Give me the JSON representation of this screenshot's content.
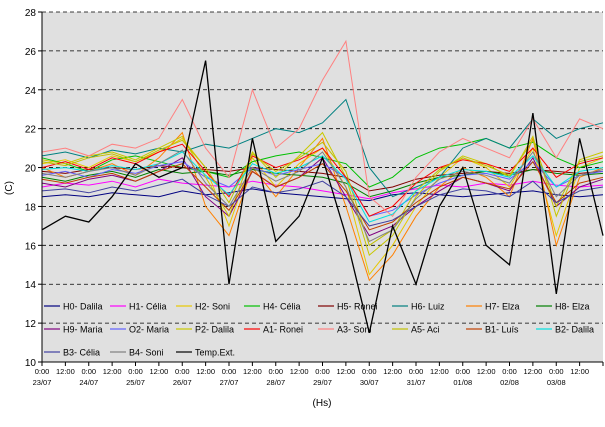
{
  "chart_data": {
    "type": "line",
    "ylabel": "(C)",
    "xlabel": "(Hs)",
    "ylim": [
      10,
      28
    ],
    "yticks": [
      10,
      12,
      14,
      16,
      18,
      20,
      22,
      24,
      26,
      28
    ],
    "grid": "horizontal dashed",
    "legend_position": "bottom-inside",
    "x_day_labels": [
      "23/07",
      "24/07",
      "25/07",
      "26/07",
      "27/07",
      "28/07",
      "29/07",
      "30/07",
      "31/07",
      "01/08",
      "02/08",
      "03/08"
    ],
    "x_time_labels": [
      "0:00",
      "12:00",
      "0:00",
      "12:00",
      "0:00",
      "12:00",
      "0:00",
      "12:00",
      "0:00",
      "12:00",
      "0:00",
      "12:00",
      "0:00",
      "12:00",
      "0:00",
      "12:00",
      "0:00",
      "12:00",
      "0:00",
      "12:00",
      "0:00",
      "12:00",
      "0:00",
      "12:00"
    ],
    "series": [
      {
        "name": "H0- Dalila",
        "color": "#000080",
        "values": [
          18.5,
          18.6,
          18.5,
          18.7,
          18.6,
          18.5,
          18.8,
          18.6,
          18.7,
          18.9,
          18.7,
          18.6,
          18.5,
          18.4,
          18.3,
          18.6,
          18.7,
          18.6,
          18.5,
          18.6,
          18.7,
          18.8,
          18.6,
          18.5,
          18.6
        ]
      },
      {
        "name": "H1- Célia",
        "color": "#ff00ff",
        "values": [
          19.0,
          19.2,
          19.1,
          19.3,
          19.0,
          19.4,
          19.2,
          19.1,
          19.0,
          19.3,
          19.1,
          19.0,
          18.8,
          18.6,
          18.4,
          18.7,
          18.9,
          19.1,
          19.0,
          19.2,
          19.1,
          19.3,
          19.1,
          19.0,
          19.1
        ]
      },
      {
        "name": "H2- Soni",
        "color": "#e8c800",
        "values": [
          20.2,
          20.4,
          20.0,
          20.6,
          20.3,
          20.8,
          21.5,
          20.0,
          17.0,
          20.5,
          19.0,
          20.2,
          21.0,
          19.0,
          14.5,
          16.0,
          18.0,
          19.5,
          20.5,
          20.0,
          19.0,
          21.0,
          16.5,
          20.0,
          20.5
        ]
      },
      {
        "name": "H4- Célia",
        "color": "#00c000",
        "values": [
          20.5,
          20.2,
          19.8,
          20.4,
          20.6,
          20.3,
          20.0,
          19.8,
          19.5,
          20.3,
          20.6,
          20.8,
          20.5,
          20.2,
          19.0,
          19.5,
          20.5,
          21.0,
          21.2,
          21.5,
          21.0,
          21.3,
          20.5,
          20.0,
          20.3
        ]
      },
      {
        "name": "H5- Ronei",
        "color": "#800000",
        "values": [
          19.8,
          19.7,
          19.9,
          20.0,
          19.9,
          20.1,
          20.0,
          19.9,
          19.8,
          20.0,
          19.9,
          19.8,
          19.7,
          19.5,
          18.8,
          19.0,
          19.4,
          19.6,
          19.7,
          19.8,
          19.7,
          19.9,
          19.8,
          19.7,
          19.8
        ]
      },
      {
        "name": "H6- Luiz",
        "color": "#008080",
        "values": [
          20.6,
          20.8,
          20.5,
          20.9,
          20.7,
          21.0,
          20.8,
          21.2,
          21.0,
          21.5,
          22.0,
          21.8,
          22.3,
          23.5,
          20.0,
          18.5,
          19.0,
          19.5,
          21.0,
          21.5,
          21.0,
          22.5,
          21.5,
          22.0,
          22.3
        ]
      },
      {
        "name": "H7- Elza",
        "color": "#ff8000",
        "values": [
          20.0,
          19.5,
          19.8,
          20.2,
          19.6,
          20.5,
          21.8,
          18.0,
          16.5,
          20.0,
          18.5,
          20.0,
          21.5,
          18.0,
          14.2,
          15.5,
          17.5,
          19.0,
          20.0,
          19.5,
          18.5,
          21.5,
          16.0,
          19.5,
          20.0
        ]
      },
      {
        "name": "H8- Elza",
        "color": "#008000",
        "values": [
          19.5,
          19.3,
          19.6,
          19.8,
          19.5,
          19.9,
          19.7,
          19.8,
          19.6,
          19.9,
          19.7,
          19.6,
          19.5,
          19.2,
          18.5,
          18.8,
          19.2,
          19.5,
          19.6,
          19.8,
          19.6,
          19.9,
          19.7,
          19.6,
          19.7
        ]
      },
      {
        "name": "H9- Maria",
        "color": "#800080",
        "values": [
          19.2,
          19.0,
          19.4,
          19.6,
          19.3,
          19.8,
          20.5,
          18.5,
          17.5,
          19.8,
          19.0,
          19.5,
          20.5,
          18.5,
          16.5,
          17.0,
          18.0,
          18.8,
          19.5,
          19.2,
          18.8,
          20.5,
          18.0,
          19.0,
          19.4
        ]
      },
      {
        "name": "O2- Maria",
        "color": "#6060ff",
        "values": [
          19.6,
          19.8,
          19.5,
          19.9,
          19.7,
          20.1,
          20.3,
          19.5,
          19.0,
          20.0,
          19.6,
          19.9,
          20.2,
          19.5,
          17.5,
          17.8,
          18.6,
          19.2,
          19.6,
          19.7,
          19.4,
          20.3,
          19.0,
          19.6,
          19.8
        ]
      },
      {
        "name": "P2- Dalila",
        "color": "#c8c800",
        "values": [
          20.4,
          20.2,
          20.6,
          20.8,
          20.4,
          21.0,
          21.6,
          19.5,
          17.5,
          20.8,
          19.5,
          20.6,
          21.8,
          19.5,
          15.5,
          16.5,
          18.5,
          19.8,
          20.6,
          20.2,
          19.5,
          21.6,
          17.5,
          20.4,
          20.8
        ]
      },
      {
        "name": "A1- Ronei",
        "color": "#ff0000",
        "values": [
          20.0,
          20.3,
          19.9,
          20.5,
          20.2,
          20.8,
          21.2,
          19.8,
          18.5,
          20.6,
          20.0,
          20.4,
          21.0,
          19.5,
          17.5,
          18.0,
          19.2,
          20.0,
          20.4,
          20.2,
          19.8,
          21.0,
          19.5,
          20.2,
          20.5
        ]
      },
      {
        "name": "A3- Soni",
        "color": "#ff8080",
        "values": [
          20.8,
          21.0,
          20.6,
          21.2,
          21.0,
          21.5,
          23.5,
          21.0,
          19.5,
          24.0,
          21.0,
          22.0,
          24.5,
          26.5,
          18.5,
          17.5,
          19.5,
          20.8,
          21.5,
          21.0,
          20.5,
          22.5,
          20.5,
          22.5,
          22.0
        ]
      },
      {
        "name": "A5- Aci",
        "color": "#c0c000",
        "values": [
          20.3,
          20.1,
          20.5,
          20.7,
          20.3,
          20.9,
          21.4,
          20.0,
          18.2,
          20.7,
          19.8,
          20.5,
          21.3,
          19.8,
          16.0,
          16.8,
          18.8,
          19.9,
          20.5,
          20.1,
          19.6,
          21.4,
          18.0,
          20.3,
          20.6
        ]
      },
      {
        "name": "B1- Luís",
        "color": "#c04000",
        "values": [
          19.4,
          19.2,
          19.5,
          19.7,
          19.3,
          19.8,
          20.2,
          19.0,
          17.8,
          19.8,
          19.0,
          19.5,
          20.2,
          18.8,
          16.8,
          17.2,
          18.2,
          19.0,
          19.5,
          19.2,
          18.9,
          20.3,
          18.2,
          19.2,
          19.5
        ]
      },
      {
        "name": "B2- Dalila",
        "color": "#00e0e0",
        "values": [
          19.9,
          20.0,
          19.8,
          20.1,
          19.9,
          20.2,
          20.8,
          19.6,
          18.6,
          20.2,
          19.7,
          20.0,
          20.6,
          19.4,
          17.2,
          17.6,
          18.8,
          19.5,
          19.9,
          19.8,
          19.5,
          20.6,
          19.0,
          19.8,
          20.0
        ]
      },
      {
        "name": "B3- Célia",
        "color": "#4040a0",
        "values": [
          18.8,
          18.9,
          18.7,
          19.0,
          18.8,
          19.1,
          19.4,
          18.6,
          18.0,
          19.0,
          18.7,
          18.9,
          19.3,
          18.5,
          17.0,
          17.3,
          18.0,
          18.6,
          18.9,
          18.8,
          18.5,
          19.3,
          18.2,
          18.8,
          19.0
        ]
      },
      {
        "name": "B4- Soni",
        "color": "#808080",
        "values": [
          19.7,
          19.5,
          19.8,
          20.0,
          19.6,
          20.2,
          20.9,
          19.2,
          18.0,
          20.0,
          19.3,
          19.8,
          20.8,
          19.0,
          16.2,
          16.8,
          18.4,
          19.4,
          19.8,
          19.6,
          19.2,
          20.8,
          18.5,
          19.6,
          19.9
        ]
      },
      {
        "name": "Temp.Ext.",
        "color": "#000000",
        "values": [
          16.8,
          17.5,
          17.2,
          18.5,
          20.2,
          19.5,
          20.0,
          25.5,
          14.0,
          21.5,
          16.2,
          17.5,
          20.5,
          16.5,
          11.5,
          17.0,
          14.0,
          18.0,
          20.0,
          16.0,
          15.0,
          22.8,
          13.5,
          21.5,
          16.5
        ]
      }
    ]
  }
}
